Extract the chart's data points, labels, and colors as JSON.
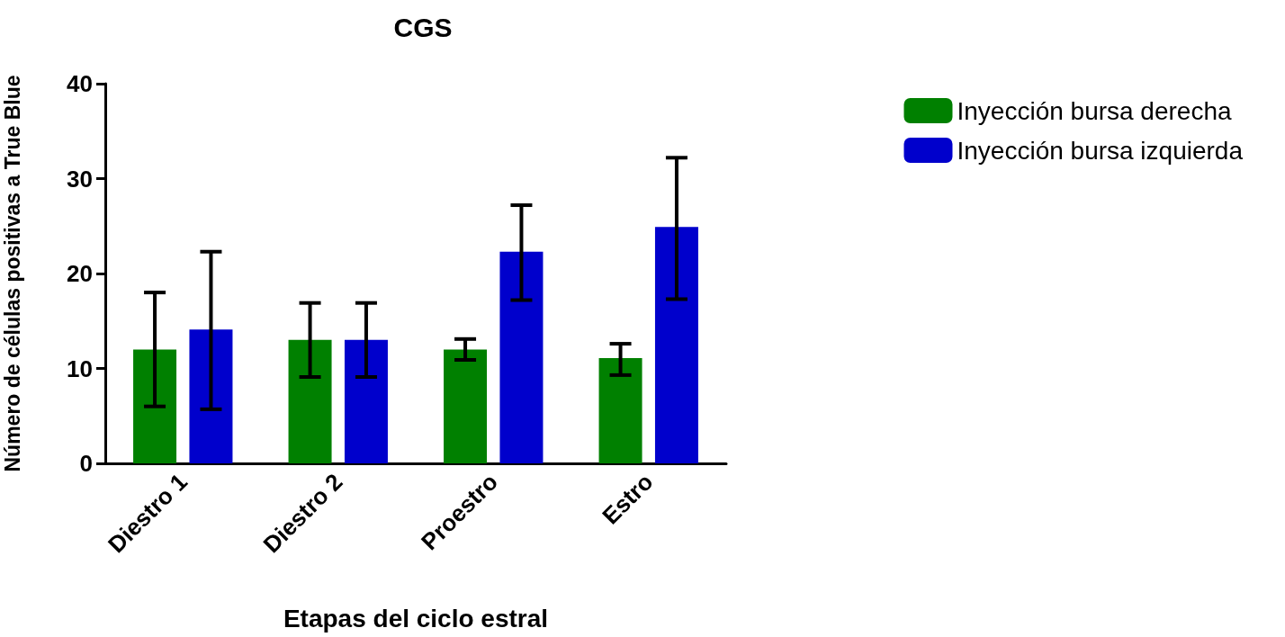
{
  "chart_data": {
    "type": "bar",
    "title": "CGS",
    "xlabel": "Etapas del ciclo estral",
    "ylabel": "Número de células positivas a True Blue",
    "categories": [
      "Diestro 1",
      "Diestro 2",
      "Proestro",
      "Estro"
    ],
    "series": [
      {
        "name": "Inyección bursa derecha",
        "color": "#008000",
        "values": [
          12,
          13,
          12,
          11.1
        ],
        "errors": [
          [
            6,
            18
          ],
          [
            9.1,
            16.9
          ],
          [
            10.9,
            13.1
          ],
          [
            9.3,
            12.6
          ]
        ]
      },
      {
        "name": "Inyección bursa izquierda",
        "color": "#0000cc",
        "values": [
          14.1,
          13,
          22.3,
          24.9
        ],
        "errors": [
          [
            5.7,
            22.3
          ],
          [
            9.1,
            16.9
          ],
          [
            17.2,
            27.2
          ],
          [
            17.3,
            32.2
          ]
        ]
      }
    ],
    "ylim": [
      0,
      40
    ],
    "yticks": [
      0,
      10,
      20,
      30,
      40
    ],
    "grid": false,
    "legend": "top right"
  }
}
